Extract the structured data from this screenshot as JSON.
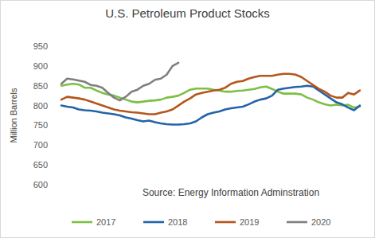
{
  "chart_data": {
    "type": "line",
    "title": "U.S. Petroleum Product Stocks",
    "y_label": "Million Barrels",
    "annotations": [
      "Source: Energy Information Adminstration"
    ],
    "categories": [
      null,
      null,
      null,
      null,
      null,
      null,
      null,
      null,
      null,
      null,
      null,
      null,
      null,
      null,
      null,
      null,
      null,
      null,
      null,
      null,
      null,
      null,
      null,
      null,
      null,
      null,
      null,
      null,
      null,
      null,
      null,
      null,
      null,
      null,
      null,
      null,
      null,
      null,
      null,
      null,
      null,
      null,
      null,
      null,
      null,
      null,
      null,
      null,
      null,
      null,
      null,
      null
    ],
    "series": [
      {
        "name": "2017",
        "color": "#7dbf45",
        "values": [
          850,
          853,
          855,
          853,
          845,
          845,
          838,
          832,
          828,
          825,
          820,
          815,
          810,
          808,
          810,
          812,
          813,
          815,
          820,
          822,
          825,
          832,
          840,
          843,
          843,
          843,
          840,
          838,
          835,
          835,
          837,
          838,
          840,
          842,
          846,
          848,
          842,
          835,
          830,
          830,
          830,
          828,
          820,
          815,
          808,
          803,
          800,
          802,
          800,
          802,
          795,
          797
        ]
      },
      {
        "name": "2018",
        "color": "#2463a8",
        "values": [
          800,
          797,
          795,
          790,
          788,
          787,
          785,
          782,
          780,
          778,
          775,
          770,
          767,
          763,
          760,
          762,
          758,
          755,
          753,
          752,
          752,
          753,
          755,
          760,
          770,
          778,
          782,
          785,
          790,
          793,
          795,
          797,
          803,
          810,
          815,
          818,
          825,
          840,
          843,
          845,
          847,
          848,
          850,
          848,
          838,
          828,
          818,
          808,
          803,
          795,
          788,
          800
        ]
      },
      {
        "name": "2019",
        "color": "#b5561c",
        "values": [
          815,
          822,
          820,
          818,
          815,
          810,
          805,
          800,
          795,
          790,
          787,
          785,
          783,
          782,
          780,
          778,
          778,
          782,
          785,
          790,
          800,
          810,
          818,
          828,
          832,
          835,
          838,
          840,
          845,
          855,
          860,
          862,
          868,
          872,
          875,
          875,
          875,
          878,
          880,
          880,
          878,
          872,
          862,
          852,
          842,
          835,
          825,
          820,
          820,
          832,
          828,
          838
        ]
      },
      {
        "name": "2020",
        "color": "#7f7f7f",
        "values": [
          855,
          868,
          866,
          863,
          860,
          852,
          850,
          845,
          832,
          820,
          813,
          822,
          835,
          840,
          850,
          855,
          865,
          868,
          878,
          900,
          908,
          null,
          null,
          null,
          null,
          null,
          null,
          null,
          null,
          null,
          null,
          null,
          null,
          null,
          null,
          null,
          null,
          null,
          null,
          null,
          null,
          null,
          null,
          null,
          null,
          null,
          null,
          null,
          null,
          null,
          null,
          null
        ]
      }
    ],
    "ylim": [
      600,
      950
    ],
    "yticks": [
      600,
      650,
      700,
      750,
      800,
      850,
      900,
      950
    ],
    "grid": false,
    "legend": "bottom",
    "tick_labels": "y"
  }
}
